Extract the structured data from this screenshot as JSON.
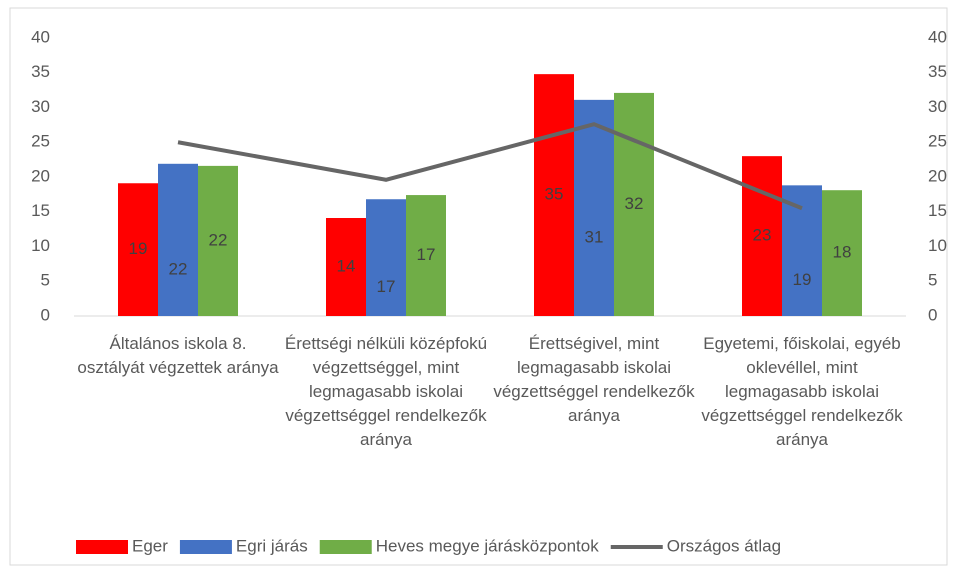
{
  "chart_data": {
    "type": "bar",
    "categories": [
      "Általános iskola 8. osztályát végzettek aránya",
      "Érettségi nélküli középfokú végzettséggel, mint legmagasabb iskolai végzettséggel rendelkezők aránya",
      "Érettségivel, mint legmagasabb iskolai végzettséggel rendelkezők aránya",
      "Egyetemi, főiskolai, egyéb oklevéllel, mint legmagasabb iskolai végzettséggel rendelkezők aránya"
    ],
    "series": [
      {
        "name": "Eger",
        "color": "#ff0000",
        "values": [
          19.1,
          14.1,
          34.8,
          23.0
        ],
        "value_labels": [
          "19",
          "14",
          "35",
          "23"
        ]
      },
      {
        "name": "Egri járás",
        "color": "#4472c4",
        "values": [
          21.9,
          16.8,
          31.1,
          18.8
        ],
        "value_labels": [
          "22",
          "17",
          "31",
          "19"
        ]
      },
      {
        "name": "Heves megye járásközpontok",
        "color": "#70ad47",
        "values": [
          21.6,
          17.4,
          32.1,
          18.1
        ],
        "value_labels": [
          "22",
          "17",
          "32",
          "18"
        ]
      },
      {
        "name": "Országos átlag",
        "color": "#666666",
        "type": "line",
        "axis": "y2",
        "values": [
          25.0,
          19.6,
          27.6,
          15.5
        ]
      }
    ],
    "ylim": [
      0,
      40
    ],
    "yticks": [
      0,
      5,
      10,
      15,
      20,
      25,
      30,
      35,
      40
    ],
    "y2lim": [
      0,
      40
    ],
    "y2ticks": [
      0,
      5,
      10,
      15,
      20,
      25,
      30,
      35,
      40
    ],
    "grid": false,
    "legend": "bottom"
  }
}
